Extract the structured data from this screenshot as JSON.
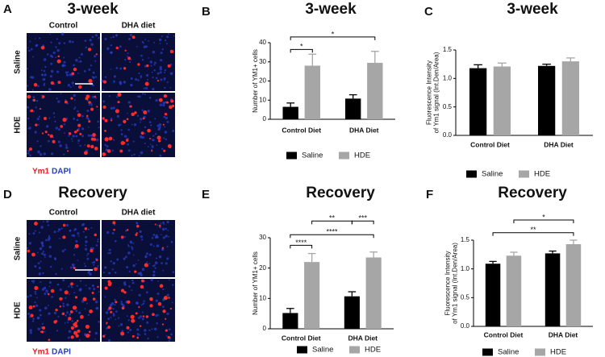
{
  "image_panels": [
    {
      "letter": "A",
      "title": "3-week",
      "columns": [
        "Control",
        "DHA diet"
      ],
      "rows": [
        "Saline",
        "HDE"
      ],
      "stain": [
        "Ym1",
        "DAPI"
      ]
    },
    {
      "letter": "D",
      "title": "Recovery",
      "columns": [
        "Control",
        "DHA diet"
      ],
      "rows": [
        "Saline",
        "HDE"
      ],
      "stain": [
        "Ym1",
        "DAPI"
      ]
    }
  ],
  "chart_data": [
    {
      "type": "bar",
      "panel_label": "B",
      "title": "3-week",
      "y_label": [
        "Number of YM1+ cells"
      ],
      "categories": [
        "Control Diet",
        "DHA Diet"
      ],
      "series": [
        {
          "name": "Saline",
          "color": "#000000",
          "values": [
            6.5,
            10.8
          ],
          "errors": [
            2,
            2
          ]
        },
        {
          "name": "HDE",
          "color": "#a6a6a6",
          "values": [
            28,
            29.5
          ],
          "errors": [
            6,
            6
          ]
        }
      ],
      "ylim": [
        0,
        40
      ],
      "yticks": [
        0,
        10,
        20,
        30,
        40
      ],
      "significance": [
        {
          "label": "*",
          "y": 36.5,
          "pair": [
            0,
            1
          ]
        },
        {
          "label": "*",
          "y": 43,
          "pair": [
            0,
            3
          ]
        }
      ]
    },
    {
      "type": "bar",
      "panel_label": "C",
      "title": "3-week",
      "y_label": [
        "Fluorescence Intensity",
        "of Ym1 signal (Int.Den/Area)"
      ],
      "categories": [
        "Control Diet",
        "DHA Diet"
      ],
      "series": [
        {
          "name": "Saline",
          "color": "#000000",
          "values": [
            1.18,
            1.22
          ],
          "errors": [
            0.06,
            0.03
          ]
        },
        {
          "name": "HDE",
          "color": "#a6a6a6",
          "values": [
            1.21,
            1.3
          ],
          "errors": [
            0.06,
            0.06
          ]
        }
      ],
      "ylim": [
        0,
        1.5
      ],
      "yticks": [
        {
          "value": 0,
          "label": "0.0"
        },
        0.5,
        {
          "value": 1,
          "label": "1.0"
        },
        1.5
      ],
      "significance": []
    },
    {
      "type": "bar",
      "panel_label": "E",
      "title": "Recovery",
      "y_label": [
        "Number of YM1+ cells"
      ],
      "categories": [
        "Control Diet",
        "DHA Diet"
      ],
      "series": [
        {
          "name": "Saline",
          "color": "#000000",
          "values": [
            5.2,
            10.7
          ],
          "errors": [
            1.5,
            1.5
          ]
        },
        {
          "name": "HDE",
          "color": "#a6a6a6",
          "values": [
            22,
            23.5
          ],
          "errors": [
            2.8,
            1.8
          ]
        }
      ],
      "ylim": [
        0,
        30
      ],
      "yticks": [
        0,
        10,
        20,
        30
      ],
      "significance": [
        {
          "label": "****",
          "y": 27.5,
          "pair": [
            0,
            1
          ]
        },
        {
          "label": "****",
          "y": 31,
          "pair": [
            0,
            3
          ]
        },
        {
          "label": "**",
          "y": 35.5,
          "pair": [
            1,
            2
          ]
        },
        {
          "label": "***",
          "y": 35.5,
          "pair": [
            2,
            3
          ]
        }
      ]
    },
    {
      "type": "bar",
      "panel_label": "F",
      "title": "Recovery",
      "y_label": [
        "Fluorescence Intensity",
        "of Ym1 signal (Int.Den/Area)"
      ],
      "categories": [
        "Control Diet",
        "DHA Diet"
      ],
      "series": [
        {
          "name": "Saline",
          "color": "#000000",
          "values": [
            1.09,
            1.27
          ],
          "errors": [
            0.04,
            0.04
          ]
        },
        {
          "name": "HDE",
          "color": "#a6a6a6",
          "values": [
            1.23,
            1.43
          ],
          "errors": [
            0.06,
            0.07
          ]
        }
      ],
      "ylim": [
        0,
        1.5
      ],
      "yticks": [
        {
          "value": 0,
          "label": "0.0"
        },
        0.5,
        {
          "value": 1,
          "label": "1.0"
        },
        1.5
      ],
      "significance": [
        {
          "label": "*",
          "y": 1.85,
          "pair": [
            1,
            3
          ]
        },
        {
          "label": "**",
          "y": 1.63,
          "pair": [
            0,
            3
          ]
        }
      ]
    }
  ]
}
